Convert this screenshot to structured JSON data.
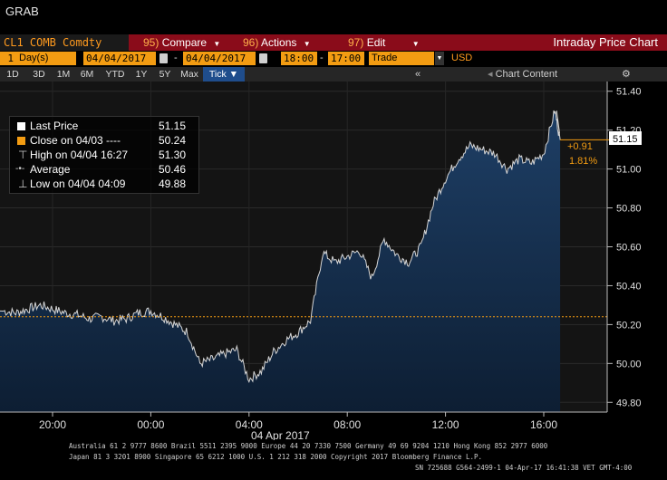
{
  "app": {
    "command": "GRAB"
  },
  "menu": {
    "ticker": "CL1 COMB Comdty",
    "compare_num": "95)",
    "compare_label": "Compare",
    "actions_num": "96)",
    "actions_label": "Actions",
    "edit_num": "97)",
    "edit_label": "Edit",
    "title": "Intraday Price Chart"
  },
  "range": {
    "period_count": "1",
    "period_unit": "Day(s)",
    "start_date": "04/04/2017",
    "dash": "-",
    "end_date": "04/04/2017",
    "start_time": "18:00",
    "end_time": "17:00",
    "field": "Trade",
    "currency": "USD"
  },
  "periods": [
    "1D",
    "3D",
    "1M",
    "6M",
    "YTD",
    "1Y",
    "5Y",
    "Max",
    "Tick ▼"
  ],
  "active_period": "Tick ▼",
  "nav": {
    "chart_content": "Chart Content"
  },
  "legend": {
    "last_label": "Last Price",
    "last_value": "51.15",
    "close_label": "Close on 04/03 ----",
    "close_value": "50.24",
    "high_label": "High on 04/04 16:27",
    "high_value": "51.30",
    "avg_label": "Average",
    "avg_value": "50.46",
    "low_label": "Low on 04/04 04:09",
    "low_value": "49.88"
  },
  "colors": {
    "accent": "#f39c12",
    "menu_red": "#8a0c1a",
    "area_top": "#1e3f66",
    "area_bottom": "#0d1e33"
  },
  "chart_data": {
    "type": "area",
    "y_unit": "USD",
    "ylim": [
      49.75,
      51.45
    ],
    "y_ticks": [
      "51.40",
      "51.20",
      "51.00",
      "50.80",
      "50.60",
      "50.40",
      "50.20",
      "50.00",
      "49.80"
    ],
    "x_ticks": [
      "20:00",
      "00:00",
      "04:00",
      "08:00",
      "12:00",
      "16:00"
    ],
    "date_label": "04 Apr 2017",
    "previous_close": 50.24,
    "last_price": "51.15",
    "change_abs": "+0.91",
    "change_pct": "1.81%",
    "series": [
      {
        "x": [
          "18:00",
          "18:30",
          "19:00",
          "19:30",
          "20:00",
          "20:30",
          "21:00",
          "21:30",
          "22:00",
          "22:30",
          "23:00",
          "23:30",
          "00:00",
          "00:30",
          "01:00",
          "01:30",
          "02:00",
          "02:30",
          "03:00",
          "03:30",
          "04:00",
          "04:30",
          "05:00",
          "05:30",
          "06:00",
          "06:30",
          "07:00",
          "07:30",
          "08:00",
          "08:30",
          "09:00",
          "09:30",
          "10:00",
          "10:30",
          "11:00",
          "11:30",
          "12:00",
          "12:30",
          "13:00",
          "13:30",
          "14:00",
          "14:30",
          "15:00",
          "15:30",
          "16:00",
          "16:27",
          "16:40"
        ],
        "y": [
          50.27,
          50.26,
          50.28,
          50.3,
          50.28,
          50.26,
          50.25,
          50.23,
          50.24,
          50.22,
          50.23,
          50.26,
          50.27,
          50.24,
          50.2,
          50.16,
          50.0,
          50.02,
          50.05,
          50.07,
          49.92,
          49.96,
          50.06,
          50.12,
          50.16,
          50.22,
          50.57,
          50.52,
          50.55,
          50.58,
          50.44,
          50.64,
          50.56,
          50.52,
          50.6,
          50.82,
          50.95,
          51.05,
          51.12,
          51.1,
          51.08,
          51.0,
          51.05,
          51.03,
          51.08,
          51.3,
          51.15
        ]
      }
    ]
  }
}
